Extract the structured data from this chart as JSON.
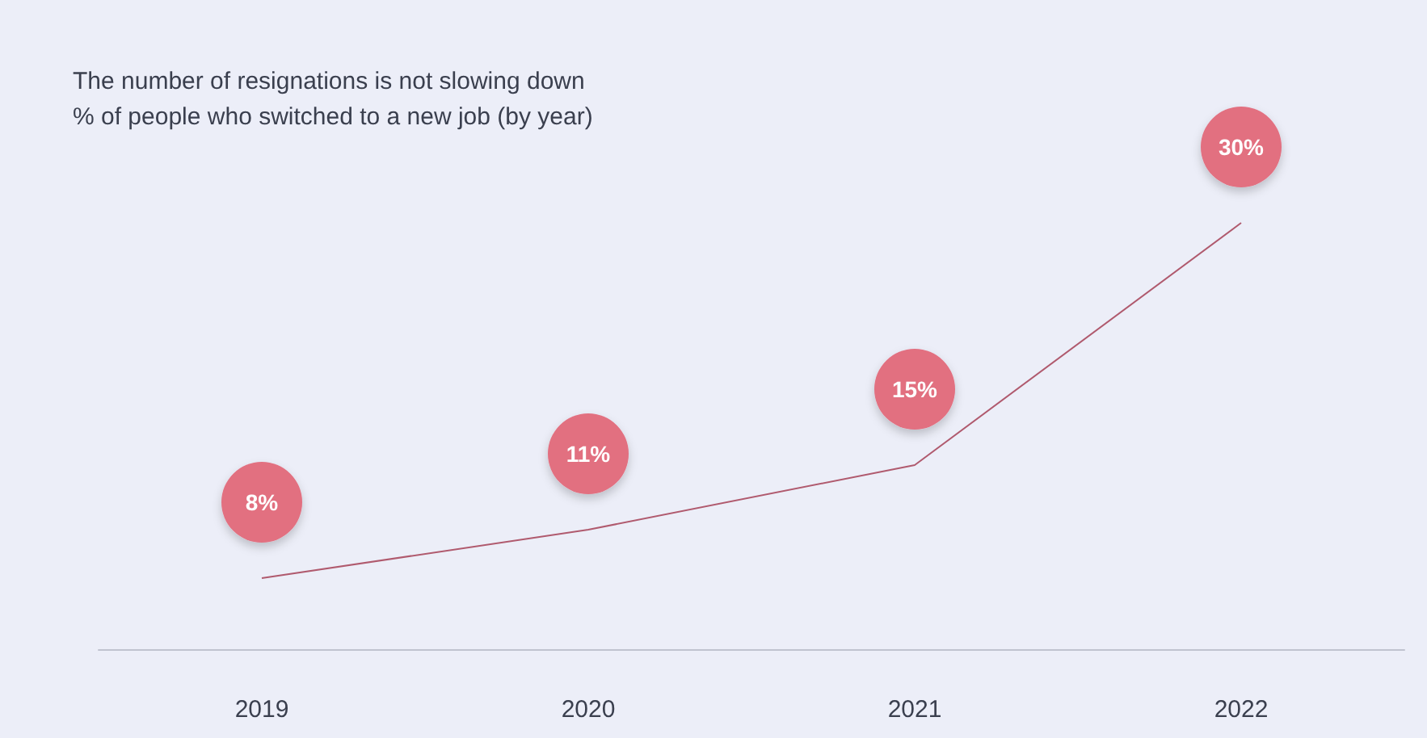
{
  "chart_data": {
    "type": "line",
    "title": "The number of resignations is not slowing down",
    "subtitle": "% of people who switched to a new job (by year)",
    "categories": [
      "2019",
      "2020",
      "2021",
      "2022"
    ],
    "series": [
      {
        "color": "#b05a6e",
        "values": [
          8,
          11,
          15,
          30
        ],
        "value_labels": [
          "8%",
          "11%",
          "15%",
          "30%"
        ]
      }
    ],
    "tick_labels": "x",
    "grid": false,
    "marker": "none",
    "line_style": "solid"
  }
}
